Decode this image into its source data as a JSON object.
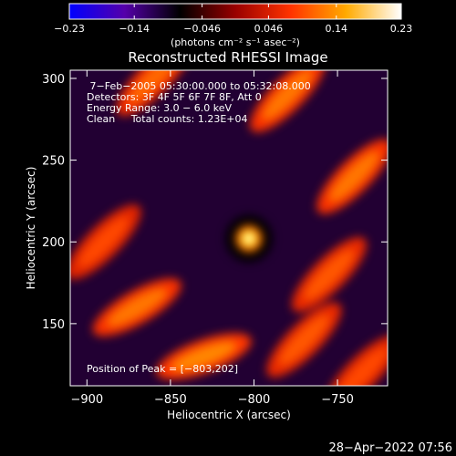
{
  "chart_data": {
    "type": "heatmap",
    "title": "Reconstructed RHESSI Image",
    "xlabel": "Heliocentric X (arcsec)",
    "ylabel": "Heliocentric Y (arcsec)",
    "xlim": [
      -910,
      -720
    ],
    "ylim": [
      112,
      305
    ],
    "xticks": [
      -900,
      -850,
      -800,
      -750
    ],
    "yticks": [
      150,
      200,
      250,
      300
    ],
    "xtick_labels": [
      "−900",
      "−850",
      "−800",
      "−750"
    ],
    "ytick_labels": [
      "150",
      "200",
      "250",
      "300"
    ],
    "colorbar": {
      "min": -0.23,
      "max": 0.23,
      "ticks": [
        -0.23,
        -0.14,
        -0.046,
        0.046,
        0.14,
        0.23
      ],
      "tick_labels": [
        "−0.23",
        "−0.14",
        "−0.046",
        "0.046",
        "0.14",
        "0.23"
      ],
      "unit_label": "(photons cm⁻² s⁻¹ asec⁻²)",
      "colors": [
        "#0000ff",
        "#5500aa",
        "#000000",
        "#990000",
        "#ff3300",
        "#ffaa00",
        "#ffffff"
      ]
    },
    "annotations": [
      " 7−Feb−2005 05:30:00.000 to 05:32:08.000",
      "Detectors: 3F 4F 5F 6F 7F 8F, Att 0",
      "Energy Range: 3.0 − 6.0 keV",
      "Clean     Total counts: 1.23E+04"
    ],
    "peak_label": "Position of Peak = [−803,202]",
    "peak": {
      "x": -803,
      "y": 202,
      "value": 0.23
    },
    "ridges": [
      {
        "x": -860,
        "y": 300,
        "angle": -45,
        "value": 0.11
      },
      {
        "x": -780,
        "y": 290,
        "angle": -45,
        "value": 0.12
      },
      {
        "x": -740,
        "y": 240,
        "angle": -45,
        "value": 0.12
      },
      {
        "x": -890,
        "y": 200,
        "angle": -45,
        "value": 0.09
      },
      {
        "x": -755,
        "y": 180,
        "angle": -45,
        "value": 0.1
      },
      {
        "x": -870,
        "y": 160,
        "angle": -30,
        "value": 0.12
      },
      {
        "x": -830,
        "y": 130,
        "angle": -20,
        "value": 0.13
      },
      {
        "x": -770,
        "y": 140,
        "angle": -45,
        "value": 0.1
      },
      {
        "x": -735,
        "y": 120,
        "angle": -45,
        "value": 0.09
      }
    ],
    "timestamp": "28−Apr−2022 07:56"
  }
}
